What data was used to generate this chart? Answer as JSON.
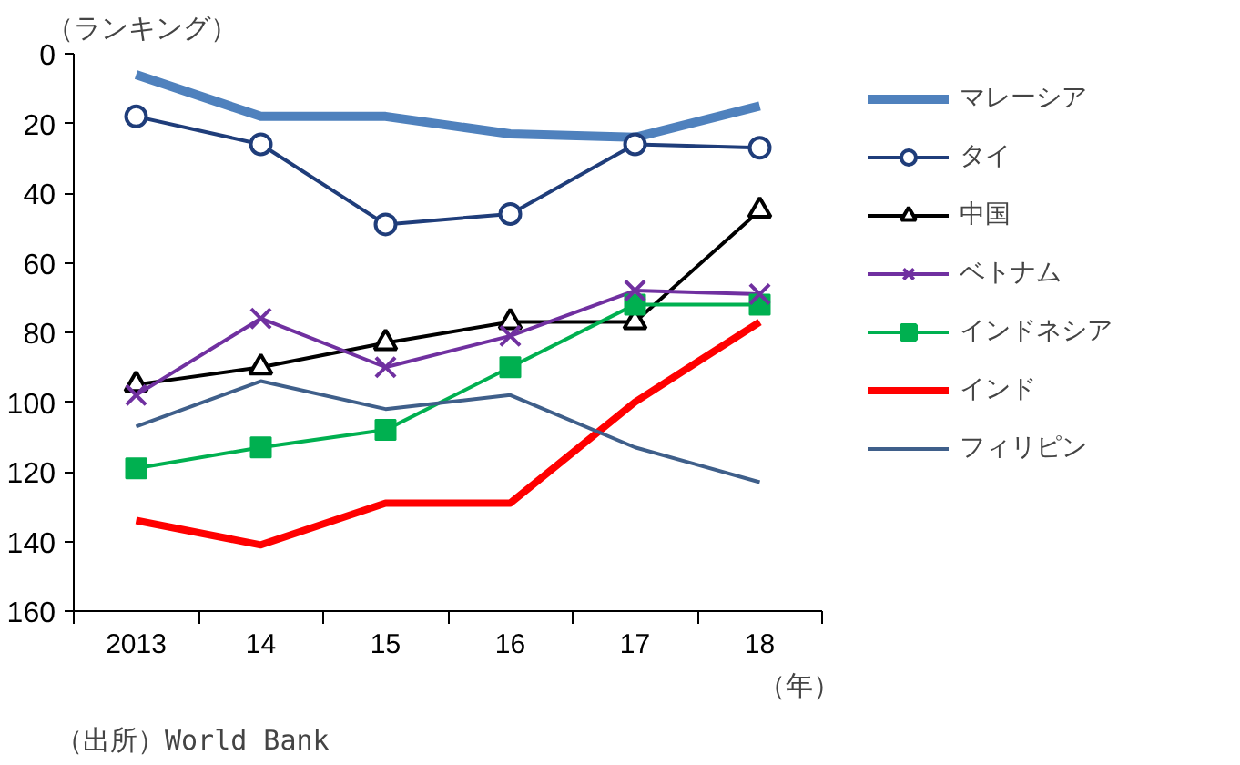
{
  "chart_data": {
    "type": "line",
    "ylabel": "（ランキング）",
    "xlabel": "（年）",
    "categories": [
      "2013",
      "14",
      "15",
      "16",
      "17",
      "18"
    ],
    "ylim": [
      160,
      0
    ],
    "yticks": [
      0,
      20,
      40,
      60,
      80,
      100,
      120,
      140,
      160
    ],
    "grid": false,
    "legend": "right",
    "annotations": [
      "（出所）World Bank"
    ],
    "series": [
      {
        "name": "マレーシア",
        "color": "#4f81bd",
        "marker": "none",
        "values": [
          6,
          18,
          18,
          23,
          24,
          15
        ]
      },
      {
        "name": "タイ",
        "color": "#1f3d7a",
        "marker": "circle",
        "values": [
          18,
          26,
          49,
          46,
          26,
          27
        ]
      },
      {
        "name": "中国",
        "color": "#000000",
        "marker": "triangle",
        "values": [
          95,
          90,
          83,
          77,
          77,
          45
        ]
      },
      {
        "name": "ベトナム",
        "color": "#7030a0",
        "marker": "cross",
        "values": [
          98,
          76,
          90,
          81,
          68,
          69
        ]
      },
      {
        "name": "インドネシア",
        "color": "#00b050",
        "marker": "square",
        "values": [
          119,
          113,
          108,
          90,
          72,
          72
        ]
      },
      {
        "name": "インド",
        "color": "#ff0000",
        "marker": "none",
        "values": [
          134,
          141,
          129,
          129,
          100,
          77
        ]
      },
      {
        "name": "フィリピン",
        "color": "#3f5f8a",
        "marker": "none",
        "values": [
          107,
          94,
          102,
          98,
          113,
          123
        ]
      }
    ]
  }
}
